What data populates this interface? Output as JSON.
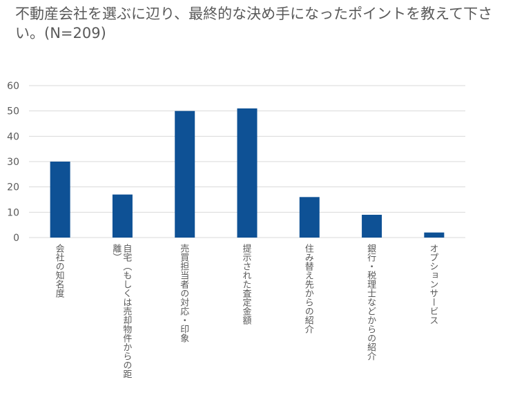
{
  "chart_data": {
    "type": "bar",
    "title": "不動産会社を選ぶに辺り、最終的な決め手になったポイントを教えて下さい。(N=209)",
    "categories": [
      "会社の知名度",
      "自宅（もしくは売却物件からの距離）",
      "売買担当者の対応・印象",
      "提示された査定金額",
      "住み替え先からの紹介",
      "銀行・税理士などからの紹介",
      "オプションサービス"
    ],
    "category_display": [
      "会社の知名度",
      "自宅（もしくは売却物件からの距\n離）",
      "売買担当者の対応・印象",
      "提示された査定金額",
      "住み替え先からの紹介",
      "銀行・税理士などからの紹介",
      "オプションサービス"
    ],
    "values": [
      30,
      17,
      50,
      51,
      16,
      9,
      2
    ],
    "ylim": [
      0,
      60
    ],
    "yticks": [
      0,
      10,
      20,
      30,
      40,
      50,
      60
    ],
    "bar_color": "#0e5195",
    "grid_color": "#d9d9d9",
    "grid": true
  }
}
